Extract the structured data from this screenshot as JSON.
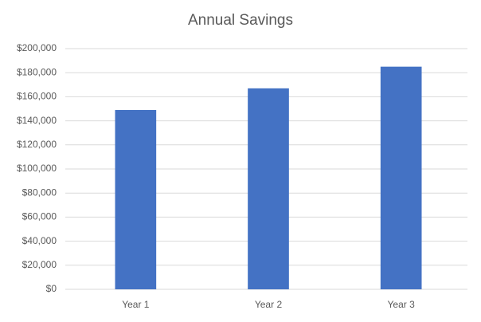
{
  "chart_data": {
    "type": "bar",
    "title": "Annual Savings",
    "categories": [
      "Year 1",
      "Year 2",
      "Year 3"
    ],
    "values": [
      149000,
      167000,
      185000
    ],
    "color": "#4472c4",
    "ylim": [
      0,
      200000
    ],
    "yticks": [
      {
        "value": 0,
        "label": "$0"
      },
      {
        "value": 20000,
        "label": "$20,000"
      },
      {
        "value": 40000,
        "label": "$40,000"
      },
      {
        "value": 60000,
        "label": "$60,000"
      },
      {
        "value": 80000,
        "label": "$80,000"
      },
      {
        "value": 100000,
        "label": "$100,000"
      },
      {
        "value": 120000,
        "label": "$120,000"
      },
      {
        "value": 140000,
        "label": "$140,000"
      },
      {
        "value": 160000,
        "label": "$160,000"
      },
      {
        "value": 180000,
        "label": "$180,000"
      },
      {
        "value": 200000,
        "label": "$200,000"
      }
    ],
    "grid": true
  }
}
